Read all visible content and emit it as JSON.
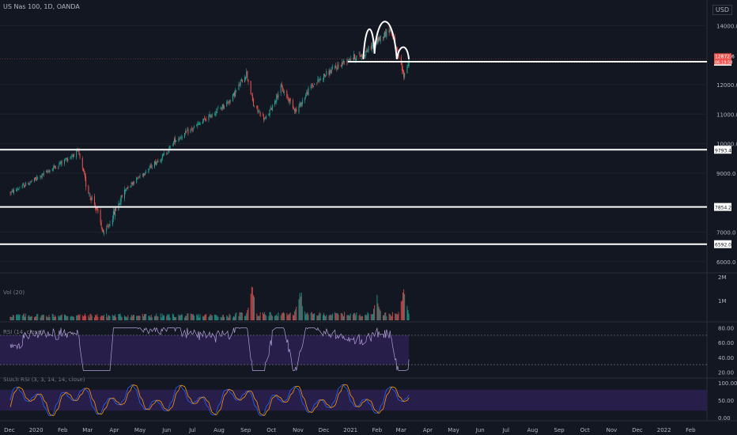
{
  "header": {
    "currency": "USD"
  },
  "colors": {
    "bg": "#131722",
    "up": "#26a69a",
    "down": "#ef5350",
    "neutral": "#787b86",
    "grid": "#1e222d",
    "axis_text": "#b2b5be",
    "rsi_line": "#b39ddb",
    "rsi_fill": "#2a1f4e",
    "k_line": "#2962ff",
    "d_line": "#ff9800",
    "vol_ma": "#ff9800",
    "annot": "#ffffff"
  },
  "chart_data": [
    {
      "type": "candlestick",
      "title": "US Nas 100, 1D, OANDA",
      "ylim": [
        5700,
        14600
      ],
      "y_ticks": [
        "6000.0",
        "7000.0",
        "9000.0",
        "10000.0",
        "11000.0",
        "12000.0",
        "14000.0"
      ],
      "x_ticks": [
        "Dec",
        "2020",
        "Feb",
        "Mar",
        "Apr",
        "May",
        "Jun",
        "Jul",
        "Aug",
        "Sep",
        "Oct",
        "Nov",
        "Dec",
        "2021",
        "Feb",
        "Mar",
        "Apr",
        "May",
        "Jun",
        "Jul",
        "Aug",
        "Sep",
        "Oct",
        "Nov",
        "Dec",
        "2022",
        "Feb"
      ],
      "path_points": [
        [
          "2019-12-01",
          8320
        ],
        [
          "2020-01-01",
          8800
        ],
        [
          "2020-02-19",
          9735
        ],
        [
          "2020-02-29",
          8500
        ],
        [
          "2020-03-10",
          7900
        ],
        [
          "2020-03-20",
          6880
        ],
        [
          "2020-03-31",
          7600
        ],
        [
          "2020-04-15",
          8500
        ],
        [
          "2020-05-01",
          8900
        ],
        [
          "2020-06-01",
          9700
        ],
        [
          "2020-06-10",
          10100
        ],
        [
          "2020-07-01",
          10500
        ],
        [
          "2020-07-20",
          10900
        ],
        [
          "2020-08-15",
          11500
        ],
        [
          "2020-09-02",
          12400
        ],
        [
          "2020-09-10",
          11300
        ],
        [
          "2020-09-24",
          10800
        ],
        [
          "2020-10-12",
          11900
        ],
        [
          "2020-10-30",
          11100
        ],
        [
          "2020-11-15",
          11900
        ],
        [
          "2020-12-01",
          12300
        ],
        [
          "2020-12-31",
          12900
        ],
        [
          "2021-01-15",
          13000
        ],
        [
          "2021-02-16",
          13900
        ],
        [
          "2021-03-04",
          12300
        ],
        [
          "2021-03-10",
          12800
        ]
      ],
      "horizontal_levels": [
        {
          "price": 12776.2,
          "label": "12776.2"
        },
        {
          "price": 9793.4,
          "label": "9793.4"
        },
        {
          "price": 7854.2,
          "label": "7854.2"
        },
        {
          "price": 6592.0,
          "label": "6592.0"
        }
      ],
      "last_price": {
        "price": 12872.6,
        "label": "12872.6",
        "countdown": "06:19:58"
      },
      "annotation": "head-and-shoulders"
    },
    {
      "type": "bar",
      "title": "Vol (20)",
      "y_ticks": [
        "2M",
        "1M"
      ],
      "spikes": [
        [
          "2020-09-08",
          0.9
        ],
        [
          "2020-11-03",
          0.85
        ],
        [
          "2021-02-01",
          0.6
        ],
        [
          "2021-03-04",
          1.0
        ]
      ]
    },
    {
      "type": "line",
      "title": "RSI (14, close)",
      "y_ticks": [
        "80.00",
        "60.00",
        "40.00",
        "20.00"
      ],
      "bands": [
        70,
        30
      ]
    },
    {
      "type": "line",
      "title": "Stoch RSI (3, 3, 14, 14, close)",
      "y_ticks": [
        "100.00",
        "50.00",
        "0.00"
      ],
      "bands": [
        80,
        20
      ]
    }
  ]
}
